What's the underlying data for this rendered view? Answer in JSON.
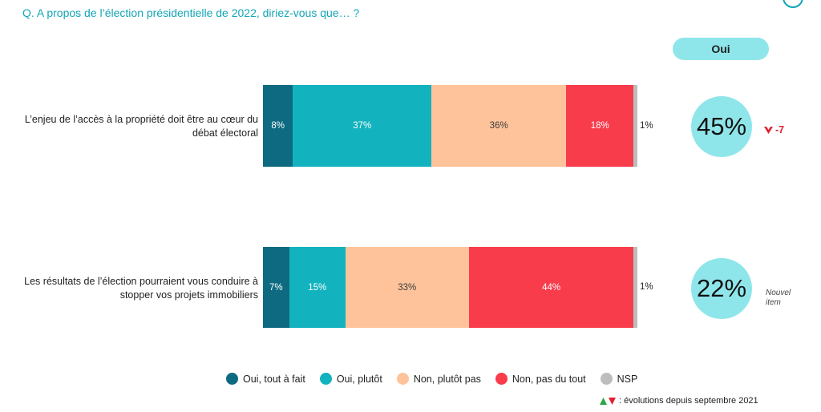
{
  "question": "Q. A propos de l’élection présidentielle de 2022, diriez-vous que… ?",
  "oui_header": "Oui",
  "chart_data": {
    "type": "bar",
    "orientation": "horizontal-stacked",
    "categories": [
      "L’enjeu de l’accès à la propriété doit être au cœur du débat électoral",
      "Les résultats de l’élection pourraient vous conduire à stopper vos projets immobiliers"
    ],
    "series": [
      {
        "name": "Oui, tout à fait",
        "color": "#0e6a80",
        "values": [
          8,
          7
        ],
        "labels": [
          "8%",
          "7%"
        ]
      },
      {
        "name": "Oui, plutôt",
        "color": "#12b3be",
        "values": [
          37,
          15
        ],
        "labels": [
          "37%",
          "15%"
        ]
      },
      {
        "name": "Non, plutôt pas",
        "color": "#ffc39b",
        "values": [
          36,
          33
        ],
        "labels": [
          "36%",
          "33%"
        ]
      },
      {
        "name": "Non, pas du tout",
        "color": "#f83c4c",
        "values": [
          18,
          44
        ],
        "labels": [
          "18%",
          "44%"
        ]
      },
      {
        "name": "NSP",
        "color": "#bdbdbd",
        "values": [
          1,
          1
        ],
        "labels": [
          "1%",
          "1%"
        ]
      }
    ],
    "oui_totals": [
      "45%",
      "22%"
    ],
    "evolutions": [
      {
        "direction": "down",
        "text": "-7"
      },
      {
        "direction": "new",
        "text": "Nouvel item"
      }
    ],
    "legend_placement": "bottom"
  },
  "footnote": ": évolutions depuis septembre 2021",
  "colors": {
    "accent": "#13a6b5",
    "oui_bubble": "#8fe6ea",
    "down": "#e12030",
    "up": "#2aa84a"
  }
}
